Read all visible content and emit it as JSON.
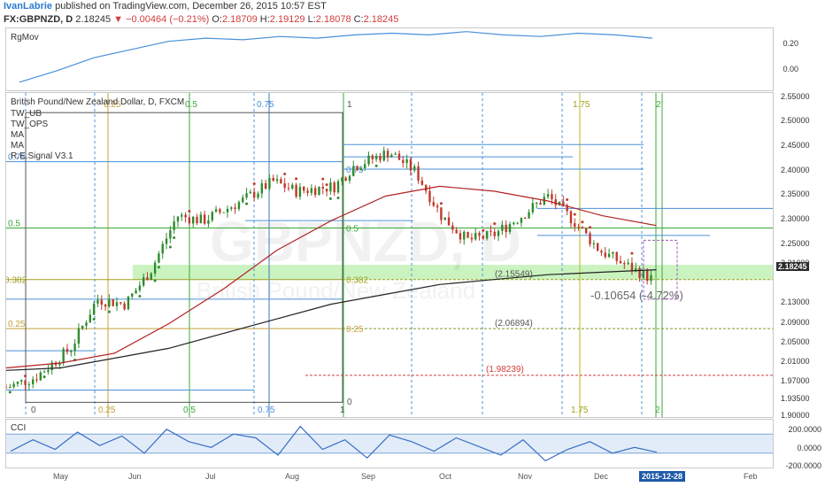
{
  "header": {
    "author": "IvanLabrie",
    "published": "published on TradingView.com, December 26, 2015 10:57 EST",
    "symbol": "FX:GBPNZD, D",
    "last": "2.18245",
    "change_arrow": "▼",
    "change": "−0.00464 (−0.21%)",
    "open_label": "O:",
    "open": "2.18709",
    "high_label": "H:",
    "high": "2.19129",
    "low_label": "L:",
    "low": "2.18078",
    "close_label": "C:",
    "close": "2.18245"
  },
  "rgmov_pane": {
    "label": "RgMov",
    "ticks": [
      "0.20",
      "0.00"
    ]
  },
  "main_pane": {
    "title": "British Pound/New Zealand Dollar, D, FXCM",
    "indicators": [
      "TW_UB",
      "TW_OPS",
      "MA",
      "MA",
      "R.E.Signal V3.1"
    ],
    "watermark_symbol": "GBPNZD, D",
    "watermark_name": "British Pound/New Zealand",
    "price_ticks": [
      "2.55000",
      "2.50000",
      "2.45000",
      "2.40000",
      "2.35000",
      "2.30000",
      "2.25000",
      "2.21000",
      "2.18245",
      "2.13000",
      "2.09000",
      "2.05000",
      "2.01000",
      "1.97000",
      "1.93500",
      "1.90000"
    ],
    "last_price_badge": "2.18245",
    "fib_levels_left": [
      {
        "label": "0.75"
      },
      {
        "label": "0.5"
      },
      {
        "label": "0.382"
      },
      {
        "label": "0.25"
      }
    ],
    "fib_levels_mid": [
      {
        "label": "0.75"
      },
      {
        "label": "0.5"
      },
      {
        "label": "0.382"
      },
      {
        "label": "0.25"
      }
    ],
    "time_fibs_top": [
      "0.25",
      "0.5",
      "0.75",
      "1",
      "1.75",
      "2"
    ],
    "time_fibs_bottom": [
      "0",
      "0.25",
      "0.5",
      "0.75",
      "1",
      "0",
      "1.75",
      "2"
    ],
    "bracket_labels": [
      "(2.15549)",
      "(2.06894)",
      "(1.98239)"
    ],
    "measure_label": "-0.10654 (-4.72%)"
  },
  "cci_pane": {
    "label": "CCI",
    "ticks": [
      "200.0000",
      "0.0000",
      "-200.0000"
    ]
  },
  "time_axis": {
    "months": [
      "May",
      "Jun",
      "Jul",
      "Aug",
      "Sep",
      "Oct",
      "Nov",
      "Dec",
      "Feb"
    ],
    "date_badge": "2015-12-28"
  },
  "colors": {
    "up": "#2e8b2e",
    "down": "#c0392b",
    "ma_slow": "#222222",
    "ma_fast": "#b22222",
    "fib_blue": "#4a90d9",
    "rgmov": "#4a90d9",
    "cci": "#3a6fc2",
    "zone": "#bdf0b0"
  },
  "chart_data": {
    "type": "candlestick",
    "title": "British Pound/New Zealand Dollar, D, FXCM",
    "x_range": [
      "2015-04-20",
      "2016-02-10"
    ],
    "ylim": [
      1.9,
      2.56
    ],
    "close_path": [
      {
        "date": "2015-04-20",
        "close": 1.96
      },
      {
        "date": "2015-05-01",
        "close": 1.98
      },
      {
        "date": "2015-05-15",
        "close": 2.04
      },
      {
        "date": "2015-05-25",
        "close": 2.14
      },
      {
        "date": "2015-06-05",
        "close": 2.13
      },
      {
        "date": "2015-06-15",
        "close": 2.2
      },
      {
        "date": "2015-06-25",
        "close": 2.31
      },
      {
        "date": "2015-07-05",
        "close": 2.3
      },
      {
        "date": "2015-07-20",
        "close": 2.34
      },
      {
        "date": "2015-08-01",
        "close": 2.38
      },
      {
        "date": "2015-08-10",
        "close": 2.36
      },
      {
        "date": "2015-08-25",
        "close": 2.37
      },
      {
        "date": "2015-09-01",
        "close": 2.41
      },
      {
        "date": "2015-09-15",
        "close": 2.44
      },
      {
        "date": "2015-09-25",
        "close": 2.4
      },
      {
        "date": "2015-10-05",
        "close": 2.31
      },
      {
        "date": "2015-10-15",
        "close": 2.26
      },
      {
        "date": "2015-10-25",
        "close": 2.27
      },
      {
        "date": "2015-11-05",
        "close": 2.31
      },
      {
        "date": "2015-11-15",
        "close": 2.35
      },
      {
        "date": "2015-11-25",
        "close": 2.3
      },
      {
        "date": "2015-12-05",
        "close": 2.24
      },
      {
        "date": "2015-12-15",
        "close": 2.21
      },
      {
        "date": "2015-12-25",
        "close": 2.18245
      }
    ],
    "moving_averages": [
      {
        "name": "MA",
        "color": "#b22222",
        "values": [
          2.0,
          2.01,
          2.03,
          2.09,
          2.16,
          2.24,
          2.3,
          2.35,
          2.37,
          2.36,
          2.34,
          2.31,
          2.29
        ]
      },
      {
        "name": "MA",
        "color": "#222222",
        "values": [
          1.995,
          2.0,
          2.02,
          2.04,
          2.07,
          2.1,
          2.13,
          2.15,
          2.17,
          2.18,
          2.19,
          2.195,
          2.2
        ]
      }
    ],
    "rgmov": {
      "ylim": [
        -0.1,
        0.28
      ],
      "values": [
        -0.05,
        0.02,
        0.1,
        0.15,
        0.2,
        0.22,
        0.21,
        0.23,
        0.22,
        0.24,
        0.25,
        0.24,
        0.26,
        0.24,
        0.23,
        0.25,
        0.24,
        0.22
      ]
    },
    "cci": {
      "ylim": [
        -250,
        250
      ],
      "values": [
        -80,
        40,
        -60,
        120,
        -20,
        80,
        -100,
        150,
        20,
        -40,
        100,
        60,
        -120,
        180,
        -60,
        40,
        -150,
        90,
        20,
        -80,
        60,
        -30,
        -120,
        40,
        -180,
        -60,
        20,
        -100,
        -40,
        -90
      ]
    }
  }
}
